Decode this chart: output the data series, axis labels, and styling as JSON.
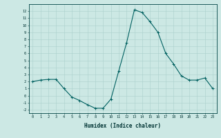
{
  "x": [
    0,
    1,
    2,
    3,
    4,
    5,
    6,
    7,
    8,
    9,
    10,
    11,
    12,
    13,
    14,
    15,
    16,
    17,
    18,
    19,
    20,
    21,
    22,
    23
  ],
  "y": [
    2.0,
    2.2,
    2.3,
    2.3,
    1.0,
    -0.2,
    -0.7,
    -1.3,
    -1.8,
    -1.8,
    -0.5,
    3.5,
    7.5,
    12.2,
    11.8,
    10.5,
    9.0,
    6.0,
    4.5,
    2.8,
    2.2,
    2.2,
    2.5,
    1.0
  ],
  "line_color": "#006060",
  "marker": "+",
  "marker_size": 3,
  "bg_color": "#cce8e4",
  "grid_color": "#aad0cc",
  "xlabel": "Humidex (Indice chaleur)",
  "xlim": [
    -0.5,
    23.5
  ],
  "ylim": [
    -2.5,
    13.0
  ],
  "yticks": [
    -2,
    -1,
    0,
    1,
    2,
    3,
    4,
    5,
    6,
    7,
    8,
    9,
    10,
    11,
    12
  ],
  "xticks": [
    0,
    1,
    2,
    3,
    4,
    5,
    6,
    7,
    8,
    9,
    10,
    11,
    12,
    13,
    14,
    15,
    16,
    17,
    18,
    19,
    20,
    21,
    22,
    23
  ],
  "tick_color": "#003333",
  "spine_color": "#004444",
  "xlabel_fontsize": 5.5,
  "tick_fontsize": 3.8,
  "linewidth": 0.8,
  "markeredgewidth": 0.7
}
